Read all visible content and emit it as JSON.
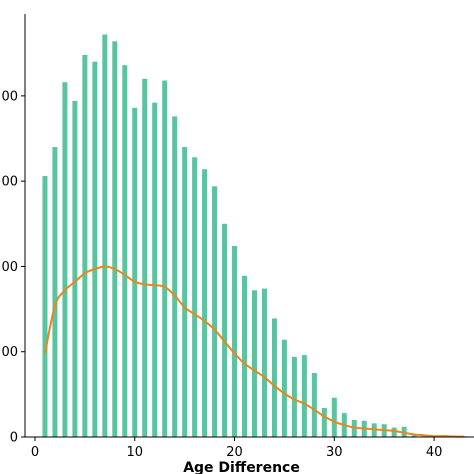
{
  "chart_data": {
    "type": "bar",
    "xlabel": "Age Difference",
    "ylabel": "",
    "xlim": [
      -1,
      44
    ],
    "ylim": [
      0,
      2480
    ],
    "x_ticks": [
      {
        "value": 0,
        "label": "0"
      },
      {
        "value": 10,
        "label": "10"
      },
      {
        "value": 20,
        "label": "20"
      },
      {
        "value": 30,
        "label": "30"
      },
      {
        "value": 40,
        "label": "40"
      }
    ],
    "y_ticks": [
      {
        "value": 0,
        "label": "0"
      },
      {
        "value": 500,
        "label": "00"
      },
      {
        "value": 1000,
        "label": "00"
      },
      {
        "value": 1500,
        "label": "00"
      },
      {
        "value": 2000,
        "label": "00"
      }
    ],
    "bar_color": "#5cc3a0",
    "line_color": "#e8871e",
    "bars": {
      "x": [
        1,
        2,
        3,
        4,
        5,
        6,
        7,
        8,
        9,
        10,
        11,
        12,
        13,
        14,
        15,
        16,
        17,
        18,
        19,
        20,
        21,
        22,
        23,
        24,
        25,
        26,
        27,
        28,
        29,
        30,
        31,
        32,
        33,
        34,
        35,
        36,
        37,
        38,
        39,
        40,
        41,
        42,
        43
      ],
      "values": [
        1530,
        1700,
        2080,
        1970,
        2240,
        2200,
        2360,
        2320,
        2180,
        1930,
        2100,
        1960,
        2090,
        1880,
        1700,
        1640,
        1570,
        1470,
        1250,
        1120,
        945,
        860,
        870,
        695,
        570,
        470,
        480,
        375,
        170,
        230,
        140,
        100,
        95,
        80,
        75,
        55,
        60,
        10,
        5,
        5,
        10,
        5,
        5
      ]
    },
    "line": {
      "x": [
        1,
        2,
        3,
        4,
        5,
        6,
        7,
        8,
        9,
        10,
        11,
        12,
        13,
        14,
        15,
        16,
        17,
        18,
        19,
        20,
        21,
        22,
        23,
        24,
        25,
        26,
        27,
        28,
        29,
        30,
        31,
        32,
        33,
        34,
        35,
        36,
        37,
        38,
        39,
        40,
        41,
        42,
        43
      ],
      "values": [
        490,
        770,
        860,
        910,
        960,
        985,
        1000,
        985,
        950,
        910,
        895,
        890,
        880,
        830,
        760,
        720,
        680,
        630,
        560,
        490,
        430,
        390,
        350,
        300,
        255,
        220,
        195,
        160,
        120,
        90,
        70,
        55,
        50,
        45,
        40,
        35,
        25,
        15,
        10,
        5,
        5,
        3,
        2
      ]
    }
  }
}
